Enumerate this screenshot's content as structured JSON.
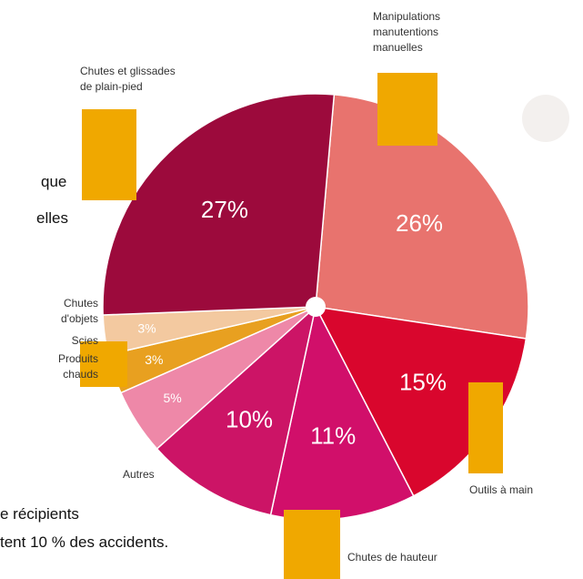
{
  "chart_data": {
    "type": "pie",
    "categories": [
      "Manipulations\nmanutentions\nmanuelles",
      "Outils à main",
      "Chutes de hauteur",
      "Autres",
      "Produits\nchauds",
      "Scies",
      "Chutes\nd'objets",
      "Chutes et glissades\nde plain-pied"
    ],
    "values": [
      26,
      15,
      11,
      10,
      5,
      3,
      3,
      27
    ],
    "value_labels": [
      "26%",
      "15%",
      "11%",
      "10%",
      "5%",
      "3%",
      "3%",
      "27%"
    ],
    "colors": [
      "#e8736e",
      "#d9062d",
      "#d10f6a",
      "#cc1466",
      "#ee88a8",
      "#e8a020",
      "#f3c9a0",
      "#9c0a3c"
    ]
  },
  "background_text": [
    "que",
    "elles",
    "e récipients",
    "tent 10 % des accidents."
  ]
}
